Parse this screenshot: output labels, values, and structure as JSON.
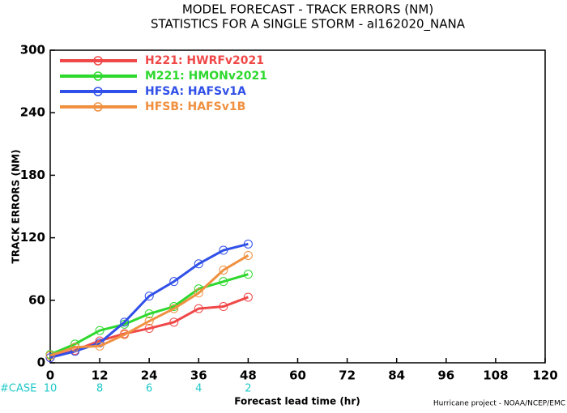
{
  "chart_data": {
    "type": "line",
    "title": "MODEL FORECAST - TRACK ERRORS (NM)",
    "subtitle": "STATISTICS FOR A SINGLE STORM - al162020_NANA",
    "x_label": "Forecast lead time (hr)",
    "y_label": "TRACK ERRORS (NM)",
    "footnote": "Hurricane project - NOAA/NCEP/EMC",
    "x": [
      0,
      6,
      12,
      18,
      24,
      30,
      36,
      42,
      48
    ],
    "series": [
      {
        "name": "H221: HWRFv2021",
        "color": "#f04848",
        "values": [
          5,
          12,
          21,
          28,
          33,
          39,
          52,
          54,
          63
        ]
      },
      {
        "name": "M221: HMONv2021",
        "color": "#2ed82e",
        "values": [
          8,
          18,
          31,
          37,
          47,
          54,
          71,
          78,
          85
        ]
      },
      {
        "name": "HFSA: HAFSv1A",
        "color": "#3050e8",
        "values": [
          5,
          11,
          19,
          39,
          64,
          78,
          95,
          108,
          114
        ]
      },
      {
        "name": "HFSB: HAFSv1B",
        "color": "#f09040",
        "values": [
          7,
          15,
          16,
          27,
          40,
          52,
          67,
          89,
          103
        ]
      }
    ],
    "cases": {
      "label": "#CASE",
      "x": [
        0,
        12,
        24,
        36,
        48
      ],
      "values": [
        10,
        8,
        6,
        4,
        2
      ],
      "color": "#20c8c8"
    },
    "xlim": [
      0,
      120
    ],
    "xticks": [
      0,
      12,
      24,
      36,
      48,
      60,
      72,
      84,
      96,
      108,
      120
    ],
    "ylim": [
      0,
      300
    ],
    "yticks": [
      0,
      60,
      120,
      180,
      240,
      300
    ],
    "legend": "upper left"
  }
}
